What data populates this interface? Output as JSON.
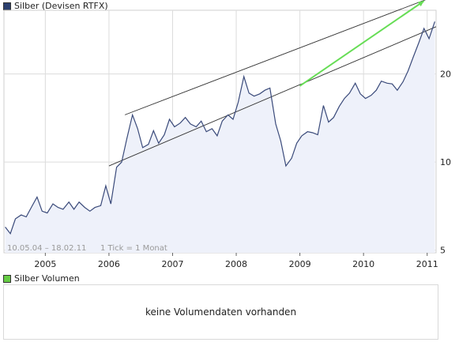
{
  "chart_data": {
    "type": "line",
    "title": "Silber (Devisen RTFX)",
    "series_name": "Silber",
    "range_label": "10.05.04 – 18.02.11",
    "interval_label": "1 Tick = 1 Monat",
    "x_ticks": [
      "2005",
      "2006",
      "2007",
      "2008",
      "2009",
      "2010",
      "2011"
    ],
    "x_tick_values": [
      2005,
      2006,
      2007,
      2008,
      2009,
      2010,
      2011
    ],
    "xlim": [
      2004.35,
      2011.14
    ],
    "y_scale": "log",
    "y_ticks": [
      "5",
      "10",
      "20"
    ],
    "y_tick_values": [
      5,
      10,
      20
    ],
    "ylim": [
      4.9,
      33
    ],
    "x": [
      2004.37,
      2004.45,
      2004.53,
      2004.62,
      2004.7,
      2004.78,
      2004.87,
      2004.95,
      2005.03,
      2005.12,
      2005.2,
      2005.28,
      2005.37,
      2005.45,
      2005.53,
      2005.62,
      2005.7,
      2005.78,
      2005.87,
      2005.95,
      2006.03,
      2006.12,
      2006.2,
      2006.28,
      2006.37,
      2006.45,
      2006.53,
      2006.62,
      2006.7,
      2006.78,
      2006.87,
      2006.95,
      2007.03,
      2007.12,
      2007.2,
      2007.28,
      2007.37,
      2007.45,
      2007.53,
      2007.62,
      2007.7,
      2007.78,
      2007.87,
      2007.95,
      2008.03,
      2008.12,
      2008.2,
      2008.28,
      2008.37,
      2008.45,
      2008.53,
      2008.62,
      2008.7,
      2008.78,
      2008.87,
      2008.95,
      2009.03,
      2009.12,
      2009.2,
      2009.28,
      2009.37,
      2009.45,
      2009.53,
      2009.62,
      2009.7,
      2009.78,
      2009.87,
      2009.95,
      2010.03,
      2010.12,
      2010.2,
      2010.28,
      2010.37,
      2010.45,
      2010.53,
      2010.62,
      2010.7,
      2010.78,
      2010.87,
      2010.95,
      2011.03,
      2011.12
    ],
    "values": [
      6.0,
      5.7,
      6.4,
      6.6,
      6.5,
      7.0,
      7.6,
      6.8,
      6.7,
      7.2,
      7.0,
      6.9,
      7.3,
      6.9,
      7.3,
      7.0,
      6.8,
      7.0,
      7.1,
      8.3,
      7.2,
      9.6,
      10.0,
      12.0,
      14.5,
      13.0,
      11.2,
      11.5,
      12.8,
      11.6,
      12.4,
      14.0,
      13.2,
      13.6,
      14.2,
      13.5,
      13.2,
      13.8,
      12.7,
      13.0,
      12.3,
      13.8,
      14.5,
      14.0,
      16.0,
      19.6,
      17.2,
      16.8,
      17.1,
      17.6,
      17.9,
      13.5,
      11.8,
      9.7,
      10.3,
      11.6,
      12.3,
      12.7,
      12.6,
      12.4,
      15.6,
      13.7,
      14.2,
      15.5,
      16.5,
      17.2,
      18.6,
      17.1,
      16.5,
      16.9,
      17.6,
      18.9,
      18.6,
      18.5,
      17.6,
      18.8,
      20.5,
      22.8,
      25.6,
      28.6,
      26.4,
      30.2
    ],
    "trendlines": [
      {
        "name": "upper-channel",
        "x": [
          2006.25,
          2011.14
        ],
        "y": [
          14.5,
          37.0
        ]
      },
      {
        "name": "lower-channel",
        "x": [
          2006.0,
          2011.14
        ],
        "y": [
          9.7,
          29.0
        ]
      },
      {
        "name": "green-arrow",
        "x": [
          2009.0,
          2010.95
        ],
        "y": [
          18.2,
          35.5
        ]
      }
    ],
    "colors": {
      "line": "#3a4a7a",
      "fill": "#eef1fa",
      "grid": "#dcdcdc",
      "trend": "#333333",
      "arrow": "#66dd55"
    }
  },
  "legend": {
    "price_label": "Silber (Devisen RTFX)",
    "price_color": "#2b3f6e",
    "volume_label": "Silber Volumen",
    "volume_color": "#66cc44"
  },
  "volume_panel": {
    "message": "keine Volumendaten vorhanden"
  }
}
